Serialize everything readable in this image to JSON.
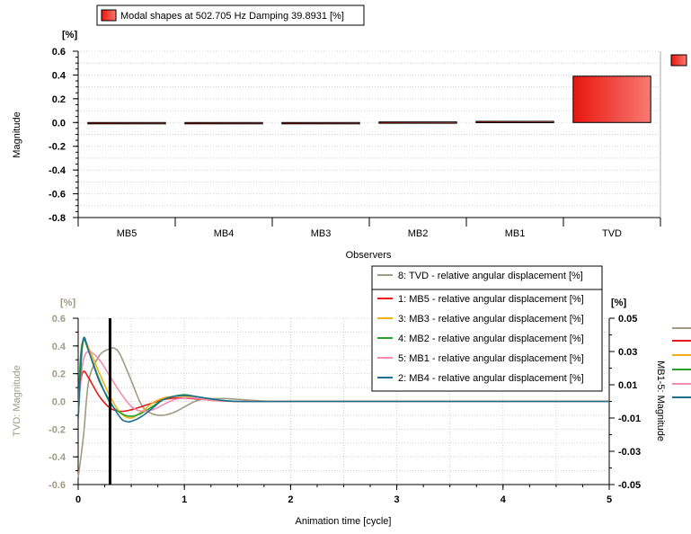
{
  "colors": {
    "bar_fill_start": "#e8160e",
    "bar_fill_end": "#f87a72",
    "tvd_line": "#a09a85",
    "marker": "#000000"
  },
  "top_chart": {
    "legend_label": "Modal shapes at 502.705 Hz Damping 39.8931 [%]",
    "unit_label": "[%]",
    "ylabel": "Magnitude",
    "xlabel": "Observers"
  },
  "bottom_chart": {
    "left_unit_label": "[%]",
    "right_unit_label": "[%]",
    "left_ylabel": "TVD: Magnitude",
    "right_ylabel": "MB1-5: Magnitude",
    "xlabel": "Animation time [cycle]",
    "marker_x": 0.3
  },
  "chart_data": [
    {
      "type": "bar",
      "title": "Modal shapes at 502.705 Hz Damping 39.8931 [%]",
      "xlabel": "Observers",
      "ylabel": "Magnitude",
      "ylim": [
        -0.8,
        0.6
      ],
      "yticks": [
        "0.6",
        "0.4",
        "0.2",
        "0.0",
        "-0.2",
        "-0.4",
        "-0.6",
        "-0.8"
      ],
      "ytick_values": [
        0.6,
        0.4,
        0.2,
        0.0,
        -0.2,
        -0.4,
        -0.6,
        -0.8
      ],
      "categories": [
        "MB5",
        "MB4",
        "MB3",
        "MB2",
        "MB1",
        "TVD"
      ],
      "values": [
        -0.005,
        -0.005,
        -0.002,
        0.005,
        0.01,
        0.39
      ],
      "grid": true,
      "legend": "top-left"
    },
    {
      "type": "line",
      "xlabel": "Animation time [cycle]",
      "xlim": [
        0,
        5
      ],
      "xticks": [
        "0",
        "1",
        "2",
        "3",
        "4",
        "5"
      ],
      "xtick_values": [
        0,
        1,
        2,
        3,
        4,
        5
      ],
      "left_axis": {
        "label": "TVD: Magnitude",
        "ylim": [
          -0.6,
          0.6
        ],
        "yticks": [
          "0.6",
          "0.4",
          "0.2",
          "0.0",
          "-0.2",
          "-0.4",
          "-0.6"
        ],
        "ytick_values": [
          0.6,
          0.4,
          0.2,
          0.0,
          -0.2,
          -0.4,
          -0.6
        ]
      },
      "right_axis": {
        "label": "MB1-5: Magnitude",
        "ylim": [
          -0.05,
          0.05
        ],
        "yticks": [
          "0.05",
          "0.03",
          "0.01",
          "-0.01",
          "-0.03",
          "-0.05"
        ],
        "ytick_values": [
          0.05,
          0.03,
          0.01,
          -0.01,
          -0.03,
          -0.05
        ]
      },
      "grid": true,
      "legend": "top-right",
      "series": [
        {
          "name": "8: TVD - relative angular displacement [%]",
          "axis": "left",
          "color": "#a09a85",
          "x": [
            0,
            0.05,
            0.1,
            0.2,
            0.3,
            0.35,
            0.4,
            0.5,
            0.6,
            0.7,
            0.8,
            0.9,
            1.0,
            1.1,
            1.2,
            1.3,
            1.4,
            1.5,
            1.6,
            1.8,
            2.0,
            3.0,
            4.0,
            5.0
          ],
          "y": [
            -0.55,
            -0.25,
            0.15,
            0.33,
            0.38,
            0.38,
            0.33,
            0.15,
            -0.03,
            -0.09,
            -0.1,
            -0.08,
            -0.04,
            0.0,
            0.02,
            0.02,
            0.02,
            0.015,
            0.01,
            0.0,
            0.0,
            0.0,
            0.0,
            0.0
          ]
        },
        {
          "name": "1: MB5 - relative angular displacement [%]",
          "axis": "right",
          "color": "#e41a1c",
          "x": [
            0,
            0.02,
            0.05,
            0.1,
            0.2,
            0.3,
            0.4,
            0.5,
            0.6,
            0.7,
            0.8,
            0.9,
            1.0,
            1.1,
            1.2,
            1.3,
            1.5,
            2.0,
            3.0,
            4.0,
            5.0
          ],
          "y": [
            -0.01,
            0.01,
            0.018,
            0.014,
            0.003,
            -0.004,
            -0.006,
            -0.005,
            -0.003,
            -0.001,
            0.001,
            0.002,
            0.002,
            0.0015,
            0.001,
            0.0005,
            0.0,
            0.0,
            0.0,
            0.0,
            0.0
          ]
        },
        {
          "name": "3: MB3 - relative angular displacement [%]",
          "axis": "right",
          "color": "#f0b21c",
          "x": [
            0,
            0.02,
            0.05,
            0.1,
            0.2,
            0.3,
            0.4,
            0.5,
            0.6,
            0.7,
            0.8,
            0.9,
            1.0,
            1.1,
            1.2,
            1.3,
            1.5,
            2.0,
            3.0,
            4.0,
            5.0
          ],
          "y": [
            -0.01,
            0.02,
            0.036,
            0.032,
            0.017,
            0.003,
            -0.007,
            -0.01,
            -0.006,
            -0.001,
            0.002,
            0.003,
            0.003,
            0.002,
            0.001,
            0.0005,
            0.0,
            0.0,
            0.0,
            0.0,
            0.0
          ]
        },
        {
          "name": "4: MB2 - relative angular displacement [%]",
          "axis": "right",
          "color": "#2ca02c",
          "x": [
            0,
            0.02,
            0.05,
            0.1,
            0.2,
            0.3,
            0.4,
            0.5,
            0.6,
            0.7,
            0.8,
            0.9,
            1.0,
            1.1,
            1.2,
            1.3,
            1.5,
            2.0,
            3.0,
            4.0,
            5.0
          ],
          "y": [
            -0.01,
            0.025,
            0.037,
            0.03,
            0.013,
            -0.001,
            -0.007,
            -0.009,
            -0.007,
            -0.003,
            0.001,
            0.003,
            0.004,
            0.003,
            0.002,
            0.001,
            0.0,
            0.0,
            0.0,
            0.0,
            0.0
          ]
        },
        {
          "name": "5: MB1 - relative angular displacement [%]",
          "axis": "right",
          "color": "#f28cb1",
          "x": [
            0,
            0.02,
            0.05,
            0.1,
            0.2,
            0.3,
            0.4,
            0.5,
            0.6,
            0.7,
            0.8,
            0.9,
            1.0,
            1.1,
            1.2,
            1.3,
            1.5,
            2.0,
            3.0,
            4.0,
            5.0
          ],
          "y": [
            -0.01,
            0.01,
            0.025,
            0.03,
            0.025,
            0.015,
            0.005,
            -0.003,
            -0.006,
            -0.005,
            -0.002,
            0.001,
            0.002,
            0.002,
            0.001,
            0.0005,
            0.0,
            0.0,
            0.0,
            0.0,
            0.0
          ]
        },
        {
          "name": "2: MB4 - relative angular displacement [%]",
          "axis": "right",
          "color": "#1f6e8c",
          "x": [
            0,
            0.02,
            0.05,
            0.1,
            0.2,
            0.3,
            0.4,
            0.45,
            0.5,
            0.6,
            0.7,
            0.8,
            0.9,
            1.0,
            1.1,
            1.2,
            1.3,
            1.5,
            2.0,
            3.0,
            4.0,
            5.0
          ],
          "y": [
            -0.01,
            0.015,
            0.038,
            0.03,
            0.012,
            0.0,
            -0.01,
            -0.012,
            -0.012,
            -0.009,
            -0.004,
            0.001,
            0.003,
            0.0035,
            0.003,
            0.002,
            0.001,
            0.0,
            0.0,
            0.0,
            0.0,
            0.0
          ]
        }
      ]
    }
  ]
}
